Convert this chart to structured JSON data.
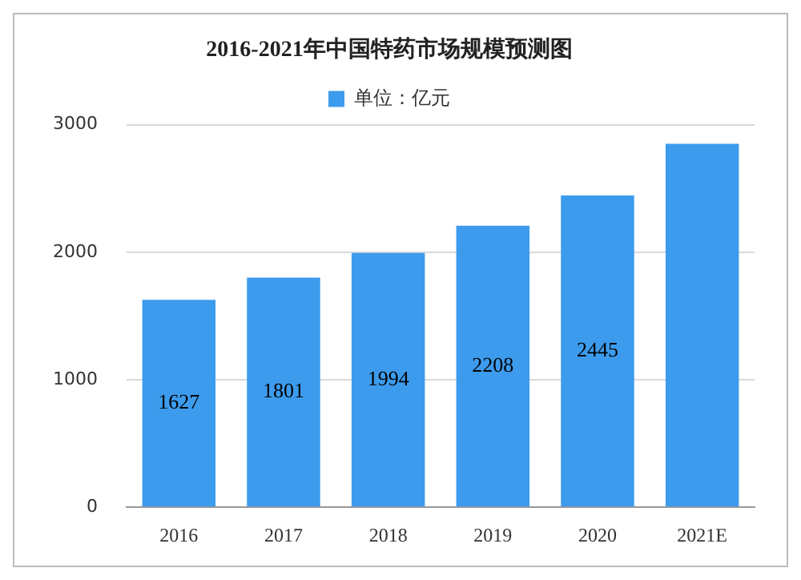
{
  "chart_data": {
    "type": "bar",
    "title": "2016-2021年中国特药市场规模预测图",
    "categories": [
      "2016",
      "2017",
      "2018",
      "2019",
      "2020",
      "2021E"
    ],
    "series": [
      {
        "name": "单位：亿元",
        "color": "#3d9bed",
        "values": [
          1627,
          1801,
          1994,
          2208,
          2445,
          2850
        ],
        "value_labels": [
          "1627",
          "1801",
          "1994",
          "2208",
          "2445",
          null
        ]
      }
    ],
    "ylim": [
      0,
      3000
    ],
    "yticks": [
      0,
      1000,
      2000,
      3000
    ],
    "grid": "y",
    "legend": "top"
  }
}
